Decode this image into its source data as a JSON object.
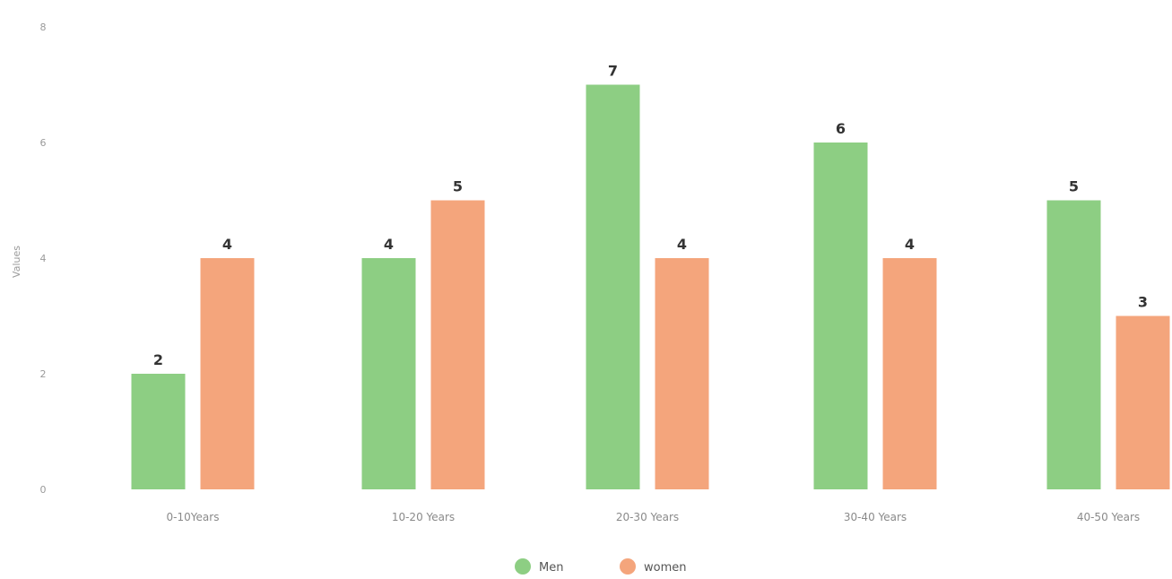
{
  "chart_data": {
    "type": "bar",
    "title": "",
    "xlabel": "",
    "ylabel": "Values",
    "ylim": [
      0,
      8
    ],
    "y_ticks": [
      0,
      2,
      4,
      6,
      8
    ],
    "categories": [
      "0-10Years",
      "10-20 Years",
      "20-30 Years",
      "30-40 Years",
      "40-50 Years"
    ],
    "series": [
      {
        "name": "Men",
        "color": "#8dce83",
        "values": [
          2,
          4,
          7,
          6,
          5
        ]
      },
      {
        "name": "women",
        "color": "#f4a57c",
        "values": [
          4,
          5,
          4,
          4,
          3
        ]
      }
    ],
    "grid": false,
    "legend_position": "bottom-center",
    "data_labels": true
  }
}
